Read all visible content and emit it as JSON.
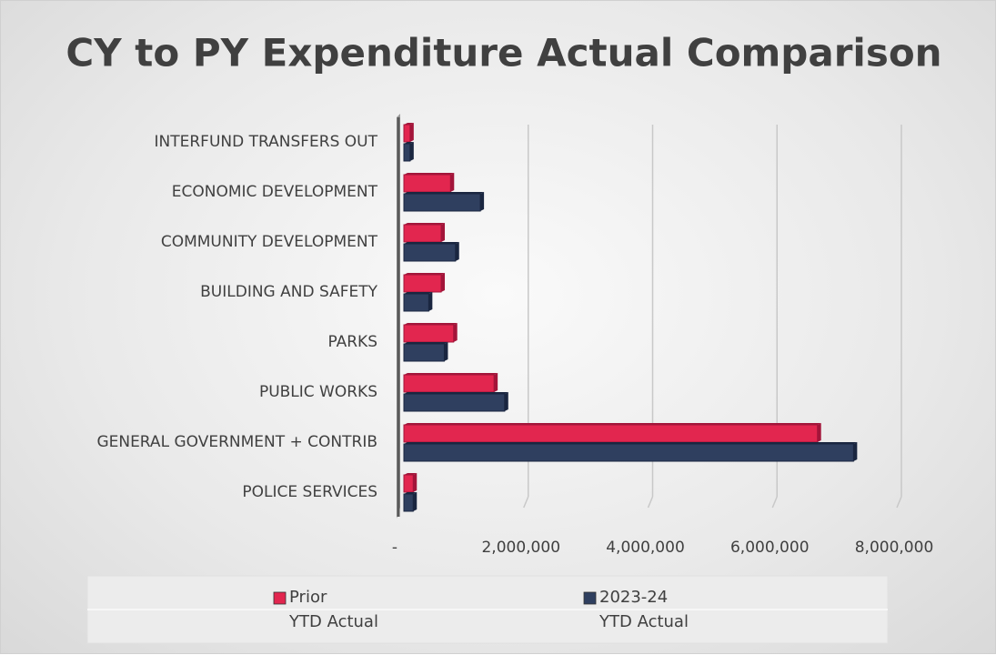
{
  "chart_data": {
    "type": "bar",
    "orientation": "horizontal",
    "title": "CY to PY Expenditure Actual Comparison",
    "categories": [
      "INTERFUND TRANSFERS OUT",
      "ECONOMIC DEVELOPMENT",
      "COMMUNITY DEVELOPMENT",
      "BUILDING AND SAFETY",
      "PARKS",
      "PUBLIC WORKS",
      "GENERAL GOVERNMENT + CONTRIB",
      "POLICE SERVICES"
    ],
    "series": [
      {
        "name": "Prior\nYTD  Actual",
        "color": "#e2264f",
        "values": [
          100000,
          750000,
          600000,
          600000,
          800000,
          1450000,
          6650000,
          150000
        ]
      },
      {
        "name": "2023-24\nYTD Actual",
        "color": "#2f3f5f",
        "values": [
          100000,
          1230000,
          830000,
          400000,
          650000,
          1620000,
          7230000,
          150000
        ]
      }
    ],
    "xlim": [
      0,
      8000000
    ],
    "xticks": [
      {
        "value": 0,
        "label": "-"
      },
      {
        "value": 2000000,
        "label": "2,000,000"
      },
      {
        "value": 4000000,
        "label": "4,000,000"
      },
      {
        "value": 6000000,
        "label": "6,000,000"
      },
      {
        "value": 8000000,
        "label": "8,000,000"
      }
    ],
    "grid": true,
    "legend": "bottom"
  }
}
